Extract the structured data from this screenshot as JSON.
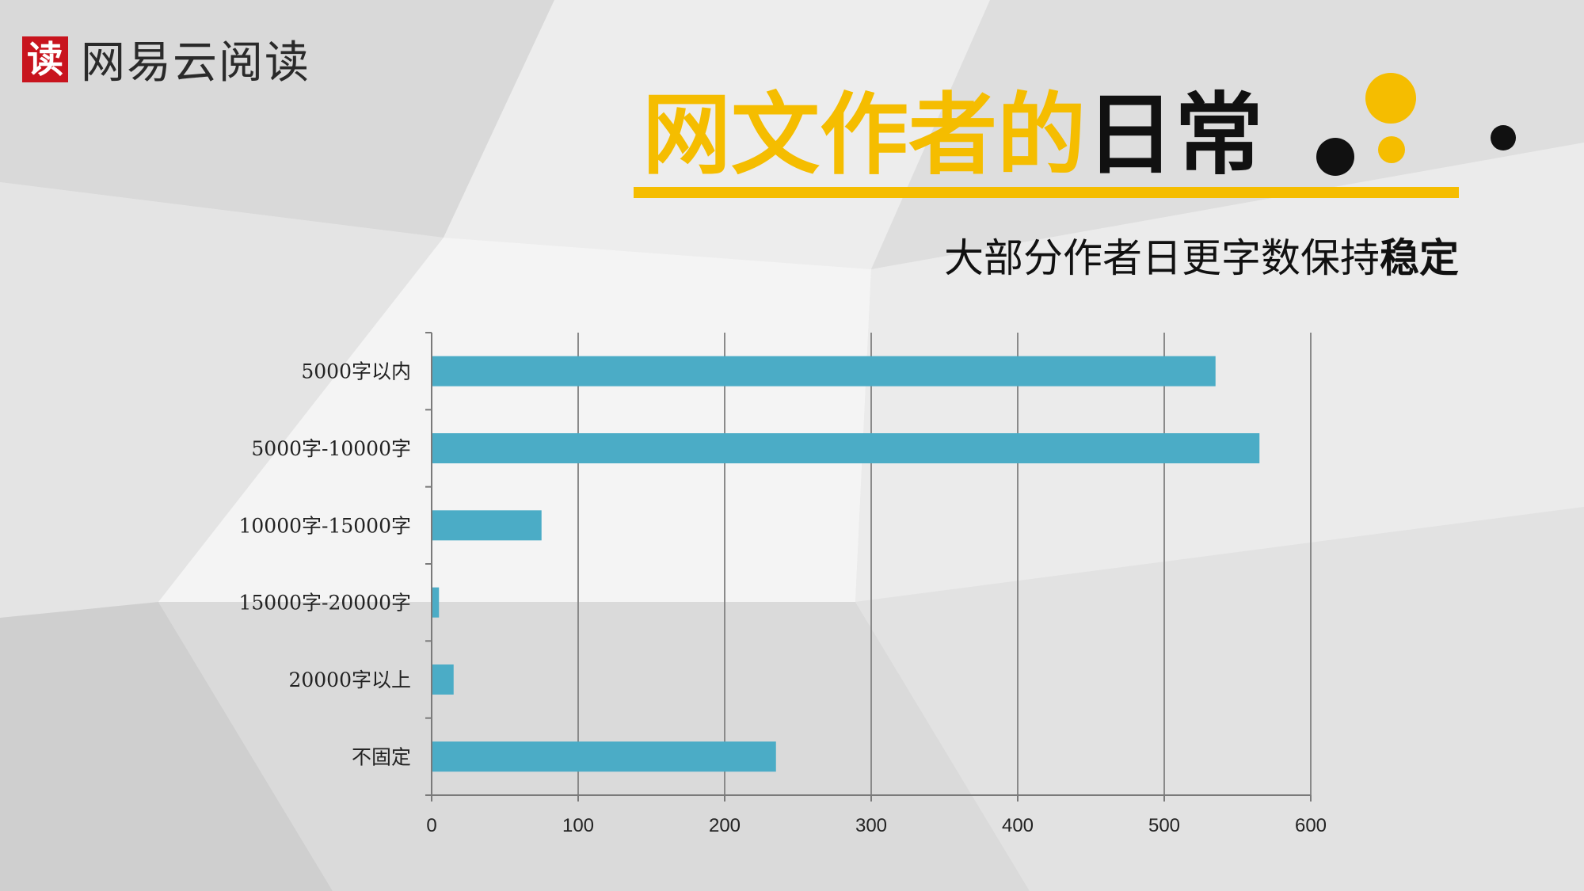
{
  "logo": {
    "mark": "读",
    "text": "网易云阅读"
  },
  "heading": {
    "title_highlight": "网文作者的",
    "title_rest": "日常"
  },
  "subtitle": {
    "normal": "大部分作者日更字数保持",
    "bold": "稳定"
  },
  "colors": {
    "accent": "#f5bd00",
    "bar": "#4bacc6",
    "logo_red": "#c8141e",
    "text": "#111111"
  },
  "chart_data": {
    "type": "bar",
    "orientation": "horizontal",
    "categories": [
      "5000字以内",
      "5000字-10000字",
      "10000字-15000字",
      "15000字-20000字",
      "20000字以上",
      "不固定"
    ],
    "values": [
      535,
      565,
      75,
      5,
      15,
      235
    ],
    "xlim": [
      0,
      600
    ],
    "xticks": [
      0,
      100,
      200,
      300,
      400,
      500,
      600
    ],
    "grid": true,
    "legend": "none"
  }
}
